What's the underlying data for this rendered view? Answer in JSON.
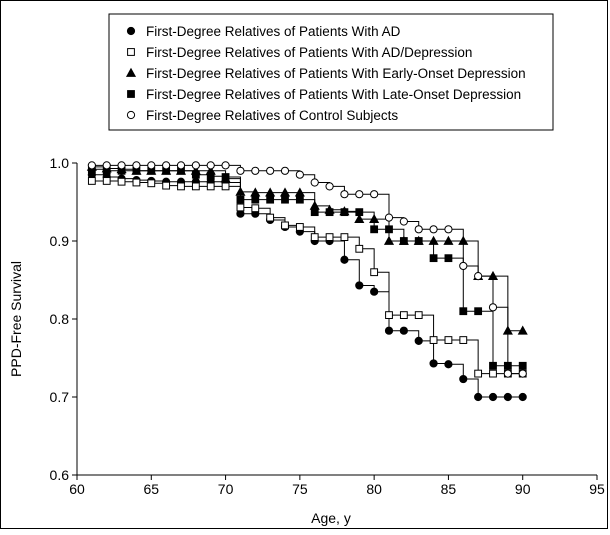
{
  "chart_data": {
    "type": "line",
    "step": true,
    "title": "",
    "xlabel": "Age, y",
    "ylabel": "PPD-Free Survival",
    "xlim": [
      60,
      95
    ],
    "ylim": [
      0.6,
      1.0
    ],
    "xticks": [
      "60",
      "65",
      "70",
      "75",
      "80",
      "85",
      "90",
      "95"
    ],
    "yticks": [
      "0.6",
      "0.7",
      "0.8",
      "0.9",
      "1.0"
    ],
    "grid": false,
    "legend_position": "top-center",
    "series": [
      {
        "name": "First-Degree Relatives of Patients With AD",
        "marker": "filled-circle",
        "x": [
          61,
          62,
          63,
          64,
          65,
          66,
          67,
          68,
          69,
          70,
          71,
          72,
          73,
          74,
          75,
          76,
          77,
          78,
          79,
          80,
          81,
          82,
          83,
          84,
          85,
          86,
          87,
          88,
          89,
          90
        ],
        "y": [
          0.985,
          0.982,
          0.98,
          0.978,
          0.977,
          0.976,
          0.976,
          0.976,
          0.976,
          0.975,
          0.935,
          0.935,
          0.927,
          0.918,
          0.912,
          0.9,
          0.9,
          0.876,
          0.843,
          0.835,
          0.785,
          0.785,
          0.772,
          0.743,
          0.742,
          0.723,
          0.7,
          0.7,
          0.7,
          0.7
        ]
      },
      {
        "name": "First-Degree Relatives of Patients With AD/Depression",
        "marker": "open-square",
        "x": [
          61,
          62,
          63,
          64,
          65,
          66,
          67,
          68,
          69,
          70,
          71,
          72,
          73,
          74,
          75,
          76,
          77,
          78,
          79,
          80,
          81,
          82,
          83,
          84,
          85,
          86,
          87,
          88,
          89,
          90
        ],
        "y": [
          0.977,
          0.977,
          0.976,
          0.975,
          0.974,
          0.971,
          0.97,
          0.97,
          0.97,
          0.97,
          0.943,
          0.942,
          0.93,
          0.92,
          0.918,
          0.905,
          0.905,
          0.905,
          0.89,
          0.86,
          0.805,
          0.805,
          0.805,
          0.773,
          0.773,
          0.773,
          0.73,
          0.73,
          0.73,
          0.73
        ]
      },
      {
        "name": "First-Degree Relatives of Patients With Early-Onset Depression",
        "marker": "filled-triangle",
        "x": [
          61,
          62,
          63,
          64,
          65,
          66,
          67,
          68,
          69,
          70,
          71,
          72,
          73,
          74,
          75,
          76,
          77,
          78,
          79,
          80,
          81,
          82,
          83,
          84,
          85,
          86,
          87,
          88,
          89,
          90
        ],
        "y": [
          0.995,
          0.993,
          0.992,
          0.99,
          0.99,
          0.99,
          0.99,
          0.99,
          0.99,
          0.98,
          0.963,
          0.962,
          0.962,
          0.962,
          0.962,
          0.945,
          0.94,
          0.938,
          0.928,
          0.928,
          0.9,
          0.9,
          0.9,
          0.9,
          0.9,
          0.9,
          0.855,
          0.855,
          0.785,
          0.785
        ]
      },
      {
        "name": "First-Degree Relatives of Patients With Late-Onset Depression",
        "marker": "filled-square",
        "x": [
          61,
          62,
          63,
          64,
          65,
          66,
          67,
          68,
          69,
          70,
          71,
          72,
          73,
          74,
          75,
          76,
          77,
          78,
          79,
          80,
          81,
          82,
          83,
          84,
          85,
          86,
          87,
          88,
          89,
          90
        ],
        "y": [
          0.992,
          0.99,
          0.99,
          0.99,
          0.99,
          0.99,
          0.99,
          0.985,
          0.983,
          0.982,
          0.953,
          0.953,
          0.953,
          0.953,
          0.953,
          0.937,
          0.937,
          0.937,
          0.937,
          0.915,
          0.915,
          0.9,
          0.9,
          0.878,
          0.878,
          0.81,
          0.81,
          0.74,
          0.74,
          0.74
        ]
      },
      {
        "name": "First-Degree Relatives of Control Subjects",
        "marker": "open-circle",
        "x": [
          61,
          62,
          63,
          64,
          65,
          66,
          67,
          68,
          69,
          70,
          71,
          72,
          73,
          74,
          75,
          76,
          77,
          78,
          79,
          80,
          81,
          82,
          83,
          84,
          85,
          86,
          87,
          88,
          89,
          90
        ],
        "y": [
          0.997,
          0.997,
          0.997,
          0.997,
          0.997,
          0.997,
          0.997,
          0.997,
          0.997,
          0.997,
          0.99,
          0.99,
          0.99,
          0.99,
          0.985,
          0.975,
          0.97,
          0.96,
          0.96,
          0.96,
          0.93,
          0.925,
          0.915,
          0.915,
          0.915,
          0.868,
          0.855,
          0.815,
          0.73,
          0.73
        ]
      }
    ]
  }
}
